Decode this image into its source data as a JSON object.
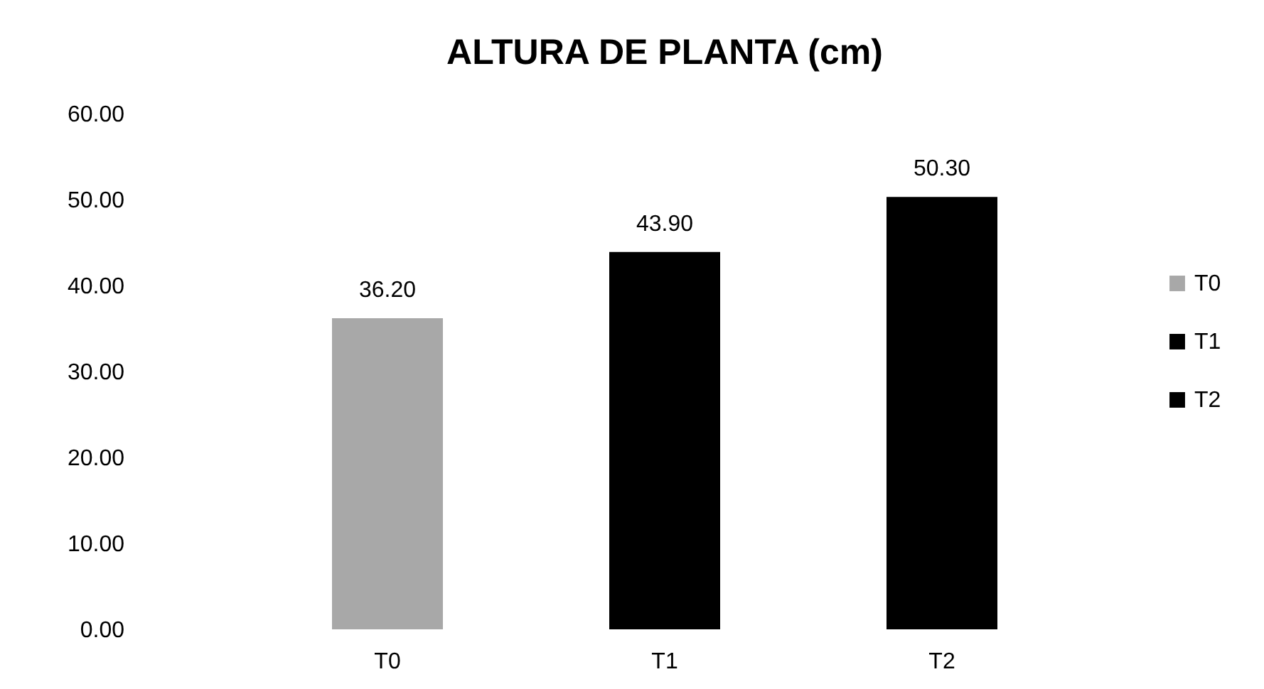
{
  "chart_data": {
    "type": "bar",
    "title": "ALTURA DE PLANTA (cm)",
    "categories": [
      "T0",
      "T1",
      "T2"
    ],
    "series": [
      {
        "name": "T0",
        "color": "#a8a8a8",
        "values": [
          36.2,
          null,
          null
        ],
        "value_labels": [
          "36.20",
          null,
          null
        ]
      },
      {
        "name": "T1",
        "color": "#000000",
        "values": [
          null,
          43.9,
          null
        ],
        "value_labels": [
          null,
          "43.90",
          null
        ]
      },
      {
        "name": "T2",
        "color": "#000000",
        "values": [
          null,
          null,
          50.3
        ],
        "value_labels": [
          null,
          null,
          "50.30"
        ]
      }
    ],
    "ylim": [
      0,
      60
    ],
    "yticks": [
      {
        "value": 0,
        "label": "0.00"
      },
      {
        "value": 10,
        "label": "10.00"
      },
      {
        "value": 20,
        "label": "20.00"
      },
      {
        "value": 30,
        "label": "30.00"
      },
      {
        "value": 40,
        "label": "40.00"
      },
      {
        "value": 50,
        "label": "50.00"
      },
      {
        "value": 60,
        "label": "60.00"
      }
    ],
    "grid": false,
    "legend": "right"
  }
}
